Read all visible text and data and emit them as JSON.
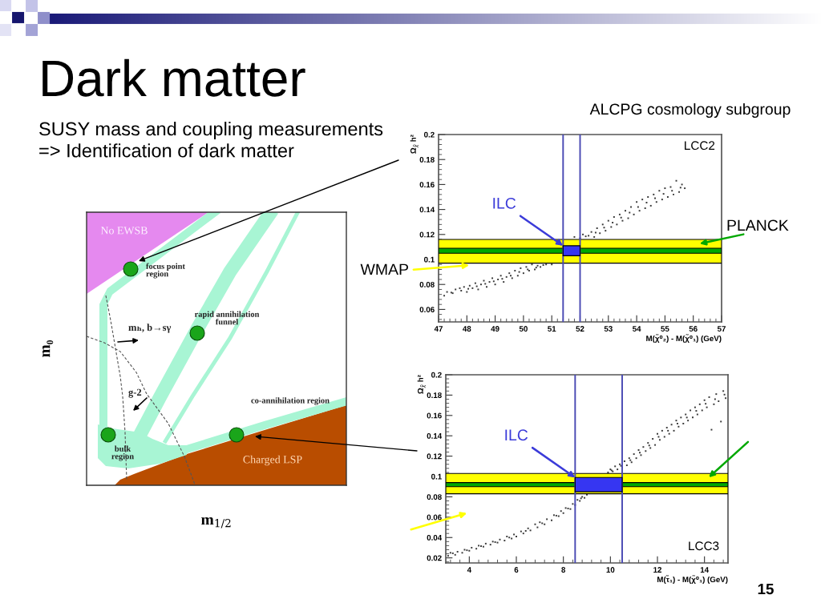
{
  "chart_data": [
    {
      "type": "other",
      "title": "Dark matter",
      "subtitle": "SUSY mass and coupling measurements\n=> Identification of dark matter",
      "xlabel": "m$_{1/2}$",
      "ylabel": "m₀",
      "annotations": [
        "No EWSB",
        "focus point\nregion",
        "rapid annihilation\nfunnel",
        "mₕ, b→sγ",
        "g-2",
        "co-annihilation region",
        "bulk\nregion",
        "Charged LSP"
      ]
    },
    {
      "type": "scatter",
      "xlabel": "M(χ̃⁰₂) - M(χ̃⁰₁) (GeV)",
      "ylabel": "Ω$_{χ̃}$ h²",
      "xlim": [
        47,
        57
      ],
      "xticks": [
        47,
        48,
        49,
        50,
        51,
        52,
        53,
        54,
        55,
        56,
        57
      ],
      "ylim": [
        0.05,
        0.2
      ],
      "yticks": [
        0.06,
        0.08,
        0.1,
        0.12,
        0.14,
        0.16,
        0.18,
        0.2
      ],
      "series": [
        {
          "color": "#3a3a3a",
          "x": [
            47.2,
            47.3,
            47.5,
            47.6,
            47.8,
            47.9,
            48.0,
            48.1,
            48.2,
            48.3,
            48.4,
            48.5,
            48.6,
            48.7,
            48.8,
            48.9,
            49.0,
            49.1,
            49.2,
            49.3,
            49.4,
            49.5,
            49.6,
            49.7,
            49.8,
            49.9,
            50.0,
            50.1,
            50.2,
            50.3,
            50.4,
            50.5,
            50.6,
            50.8,
            51.0,
            51.8,
            52.0,
            52.1,
            52.3,
            52.4,
            52.5,
            52.6,
            52.7,
            52.8,
            52.9,
            53.0,
            53.1,
            53.2,
            53.3,
            53.4,
            53.5,
            53.6,
            53.7,
            53.8,
            53.9,
            54.0,
            54.1,
            54.2,
            54.3,
            54.4,
            54.5,
            54.6,
            54.7,
            54.8,
            54.9,
            55.0,
            55.1,
            55.2,
            55.3,
            55.4,
            55.5,
            55.6,
            55.7,
            47.45,
            47.75,
            48.05,
            48.35,
            48.65,
            48.95,
            49.25,
            49.55,
            49.85,
            50.15,
            50.45,
            50.7,
            52.2,
            52.55,
            52.85,
            53.15,
            53.45,
            53.75,
            54.05,
            54.35,
            54.65,
            54.95,
            55.25,
            55.55
          ],
          "values": [
            0.071,
            0.074,
            0.073,
            0.076,
            0.075,
            0.078,
            0.074,
            0.079,
            0.077,
            0.081,
            0.076,
            0.08,
            0.083,
            0.078,
            0.082,
            0.085,
            0.08,
            0.084,
            0.087,
            0.082,
            0.086,
            0.089,
            0.085,
            0.091,
            0.087,
            0.093,
            0.089,
            0.094,
            0.091,
            0.096,
            0.092,
            0.095,
            0.094,
            0.096,
            0.096,
            0.118,
            0.117,
            0.12,
            0.119,
            0.122,
            0.118,
            0.125,
            0.121,
            0.128,
            0.123,
            0.131,
            0.126,
            0.134,
            0.128,
            0.136,
            0.131,
            0.139,
            0.133,
            0.142,
            0.136,
            0.146,
            0.139,
            0.148,
            0.141,
            0.15,
            0.143,
            0.152,
            0.146,
            0.155,
            0.148,
            0.157,
            0.15,
            0.158,
            0.152,
            0.163,
            0.154,
            0.16,
            0.157,
            0.0735,
            0.077,
            0.0765,
            0.0785,
            0.0805,
            0.0825,
            0.0845,
            0.087,
            0.09,
            0.092,
            0.0935,
            0.0955,
            0.1185,
            0.1215,
            0.1255,
            0.1295,
            0.1335,
            0.1375,
            0.142,
            0.1455,
            0.149,
            0.1525,
            0.155,
            0.1575
          ]
        },
        {
          "type": "bar",
          "x": [
            51.7
          ],
          "values": [
            0.008
          ],
          "base": [
            0.103
          ],
          "color": "#3636f2"
        }
      ],
      "bands": [
        {
          "axis": "y",
          "from": 0.097,
          "to": 0.116,
          "color": "#ffff00",
          "label": "WMAP"
        },
        {
          "axis": "y",
          "from": 0.105,
          "to": 0.109,
          "color": "#00a800",
          "label": "PLANCK"
        }
      ],
      "ref_lines": [
        {
          "axis": "x",
          "value": 51.4,
          "color": "#4b4bb4"
        },
        {
          "axis": "x",
          "value": 52.0,
          "color": "#4b4bb4"
        }
      ],
      "annotations": [
        "LCC2",
        {
          "text": "ILC",
          "x": 51.4,
          "y": 0.111
        },
        "ALCPG cosmology subgroup"
      ]
    },
    {
      "type": "scatter",
      "xlabel": "M(τ̃₁) - M(χ̃⁰₁) (GeV)",
      "ylabel": "Ω$_{χ̃}$ h²",
      "xlim": [
        3,
        15
      ],
      "xticks": [
        4,
        6,
        8,
        10,
        12,
        14
      ],
      "ylim": [
        0.015,
        0.2
      ],
      "yticks": [
        0.02,
        0.04,
        0.06,
        0.08,
        0.1,
        0.12,
        0.14,
        0.16,
        0.18,
        0.2
      ],
      "series": [
        {
          "color": "#3a3a3a",
          "x": [
            3.1,
            3.2,
            3.4,
            3.5,
            3.7,
            3.8,
            4.0,
            4.1,
            4.3,
            4.4,
            4.6,
            4.7,
            4.9,
            5.0,
            5.2,
            5.3,
            5.5,
            5.6,
            5.8,
            5.9,
            6.0,
            6.2,
            6.3,
            6.5,
            6.6,
            6.8,
            6.9,
            7.0,
            7.2,
            7.3,
            7.5,
            7.6,
            7.8,
            7.9,
            8.0,
            8.1,
            8.3,
            8.4,
            8.5,
            8.6,
            8.7,
            8.8,
            8.9,
            9.0,
            9.9,
            10.0,
            10.1,
            10.2,
            10.3,
            10.4,
            10.5,
            10.6,
            10.7,
            10.8,
            10.9,
            11.0,
            11.1,
            11.2,
            11.3,
            11.4,
            11.5,
            11.6,
            11.7,
            11.8,
            11.9,
            12.0,
            12.1,
            12.2,
            12.3,
            12.4,
            12.5,
            12.6,
            12.7,
            12.8,
            12.9,
            13.0,
            13.1,
            13.2,
            13.3,
            13.4,
            13.5,
            13.6,
            13.7,
            13.8,
            13.9,
            14.0,
            14.1,
            14.2,
            14.3,
            14.4,
            14.5,
            14.6,
            14.7,
            14.8,
            14.9,
            3.3,
            3.9,
            4.5,
            5.1,
            5.7,
            6.4,
            7.1,
            7.7,
            8.2,
            8.75,
            10.05,
            10.45,
            10.85,
            11.25,
            11.65,
            12.05,
            12.45,
            12.85,
            13.25,
            13.65,
            14.05,
            14.45,
            14.85
          ],
          "values": [
            0.022,
            0.025,
            0.023,
            0.026,
            0.025,
            0.028,
            0.027,
            0.03,
            0.029,
            0.032,
            0.031,
            0.034,
            0.033,
            0.036,
            0.035,
            0.038,
            0.037,
            0.041,
            0.039,
            0.043,
            0.041,
            0.046,
            0.044,
            0.049,
            0.047,
            0.053,
            0.05,
            0.055,
            0.053,
            0.058,
            0.057,
            0.062,
            0.061,
            0.066,
            0.064,
            0.069,
            0.068,
            0.073,
            0.072,
            0.077,
            0.076,
            0.08,
            0.079,
            0.082,
            0.104,
            0.107,
            0.105,
            0.11,
            0.107,
            0.112,
            0.109,
            0.115,
            0.111,
            0.118,
            0.114,
            0.122,
            0.118,
            0.126,
            0.121,
            0.129,
            0.125,
            0.133,
            0.128,
            0.137,
            0.131,
            0.142,
            0.136,
            0.145,
            0.139,
            0.148,
            0.142,
            0.151,
            0.145,
            0.155,
            0.149,
            0.158,
            0.152,
            0.161,
            0.155,
            0.165,
            0.158,
            0.168,
            0.161,
            0.171,
            0.165,
            0.175,
            0.168,
            0.178,
            0.146,
            0.171,
            0.181,
            0.174,
            0.154,
            0.184,
            0.177,
            0.0245,
            0.0275,
            0.0315,
            0.0355,
            0.04,
            0.0465,
            0.054,
            0.0615,
            0.0685,
            0.0785,
            0.106,
            0.1105,
            0.116,
            0.1235,
            0.1305,
            0.139,
            0.145,
            0.152,
            0.158,
            0.1645,
            0.1715,
            0.176,
            0.1805
          ]
        },
        {
          "type": "bar",
          "x": [
            9.5
          ],
          "values": [
            0.014
          ],
          "base": [
            0.085
          ],
          "color": "#3636f2"
        }
      ],
      "bands": [
        {
          "axis": "y",
          "from": 0.083,
          "to": 0.103,
          "color": "#ffff00"
        },
        {
          "axis": "y",
          "from": 0.09,
          "to": 0.094,
          "color": "#00a800"
        }
      ],
      "ref_lines": [
        {
          "axis": "x",
          "value": 8.5,
          "color": "#4b4bb4"
        },
        {
          "axis": "x",
          "value": 10.5,
          "color": "#4b4bb4"
        }
      ],
      "annotations": [
        "LCC3",
        {
          "text": "ILC",
          "x": 8.5,
          "y": 0.099
        },
        "15"
      ]
    }
  ]
}
